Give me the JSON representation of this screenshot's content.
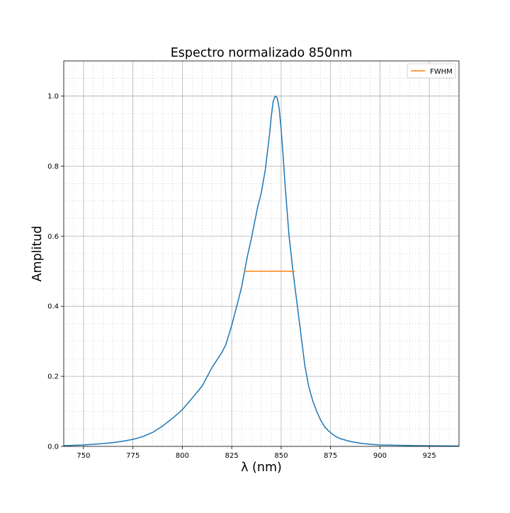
{
  "chart_data": {
    "type": "line",
    "title": "Espectro normalizado 850nm",
    "xlabel": "λ (nm)",
    "ylabel": "Amplitud",
    "xlim": [
      740,
      940
    ],
    "ylim": [
      0,
      1.1
    ],
    "xticks": [
      750,
      775,
      800,
      825,
      850,
      875,
      900,
      925
    ],
    "yticks": [
      0.0,
      0.2,
      0.4,
      0.6,
      0.8,
      1.0
    ],
    "xtick_labels": [
      "750",
      "775",
      "800",
      "825",
      "850",
      "875",
      "900",
      "925"
    ],
    "ytick_labels": [
      "0.0",
      "0.2",
      "0.4",
      "0.6",
      "0.8",
      "1.0"
    ],
    "grid": "major and minor",
    "legend_position": "top-right",
    "series": [
      {
        "color": "#1f77b4",
        "x": [
          740,
          750,
          755,
          760,
          765,
          770,
          775,
          780,
          785,
          790,
          795,
          800,
          805,
          810,
          815,
          820,
          822,
          825,
          828,
          830,
          833,
          835,
          838,
          840,
          842,
          844,
          845,
          846,
          847,
          848,
          849,
          850,
          851,
          852,
          854,
          856,
          858,
          860,
          862,
          864,
          866,
          868,
          870,
          872,
          874,
          876,
          878,
          880,
          885,
          890,
          895,
          900,
          910,
          920,
          930,
          940
        ],
        "y": [
          0.002,
          0.004,
          0.006,
          0.008,
          0.011,
          0.015,
          0.02,
          0.028,
          0.04,
          0.058,
          0.08,
          0.105,
          0.138,
          0.172,
          0.225,
          0.268,
          0.29,
          0.345,
          0.41,
          0.455,
          0.545,
          0.595,
          0.68,
          0.725,
          0.79,
          0.885,
          0.94,
          0.985,
          1.0,
          0.995,
          0.965,
          0.905,
          0.83,
          0.745,
          0.6,
          0.5,
          0.41,
          0.32,
          0.23,
          0.17,
          0.13,
          0.1,
          0.075,
          0.056,
          0.044,
          0.035,
          0.027,
          0.022,
          0.014,
          0.009,
          0.006,
          0.004,
          0.003,
          0.002,
          0.0015,
          0.001
        ]
      },
      {
        "name": "FWHM",
        "color": "#ff7f0e",
        "x": [
          831.5,
          857
        ],
        "y": [
          0.5,
          0.5
        ]
      }
    ]
  }
}
